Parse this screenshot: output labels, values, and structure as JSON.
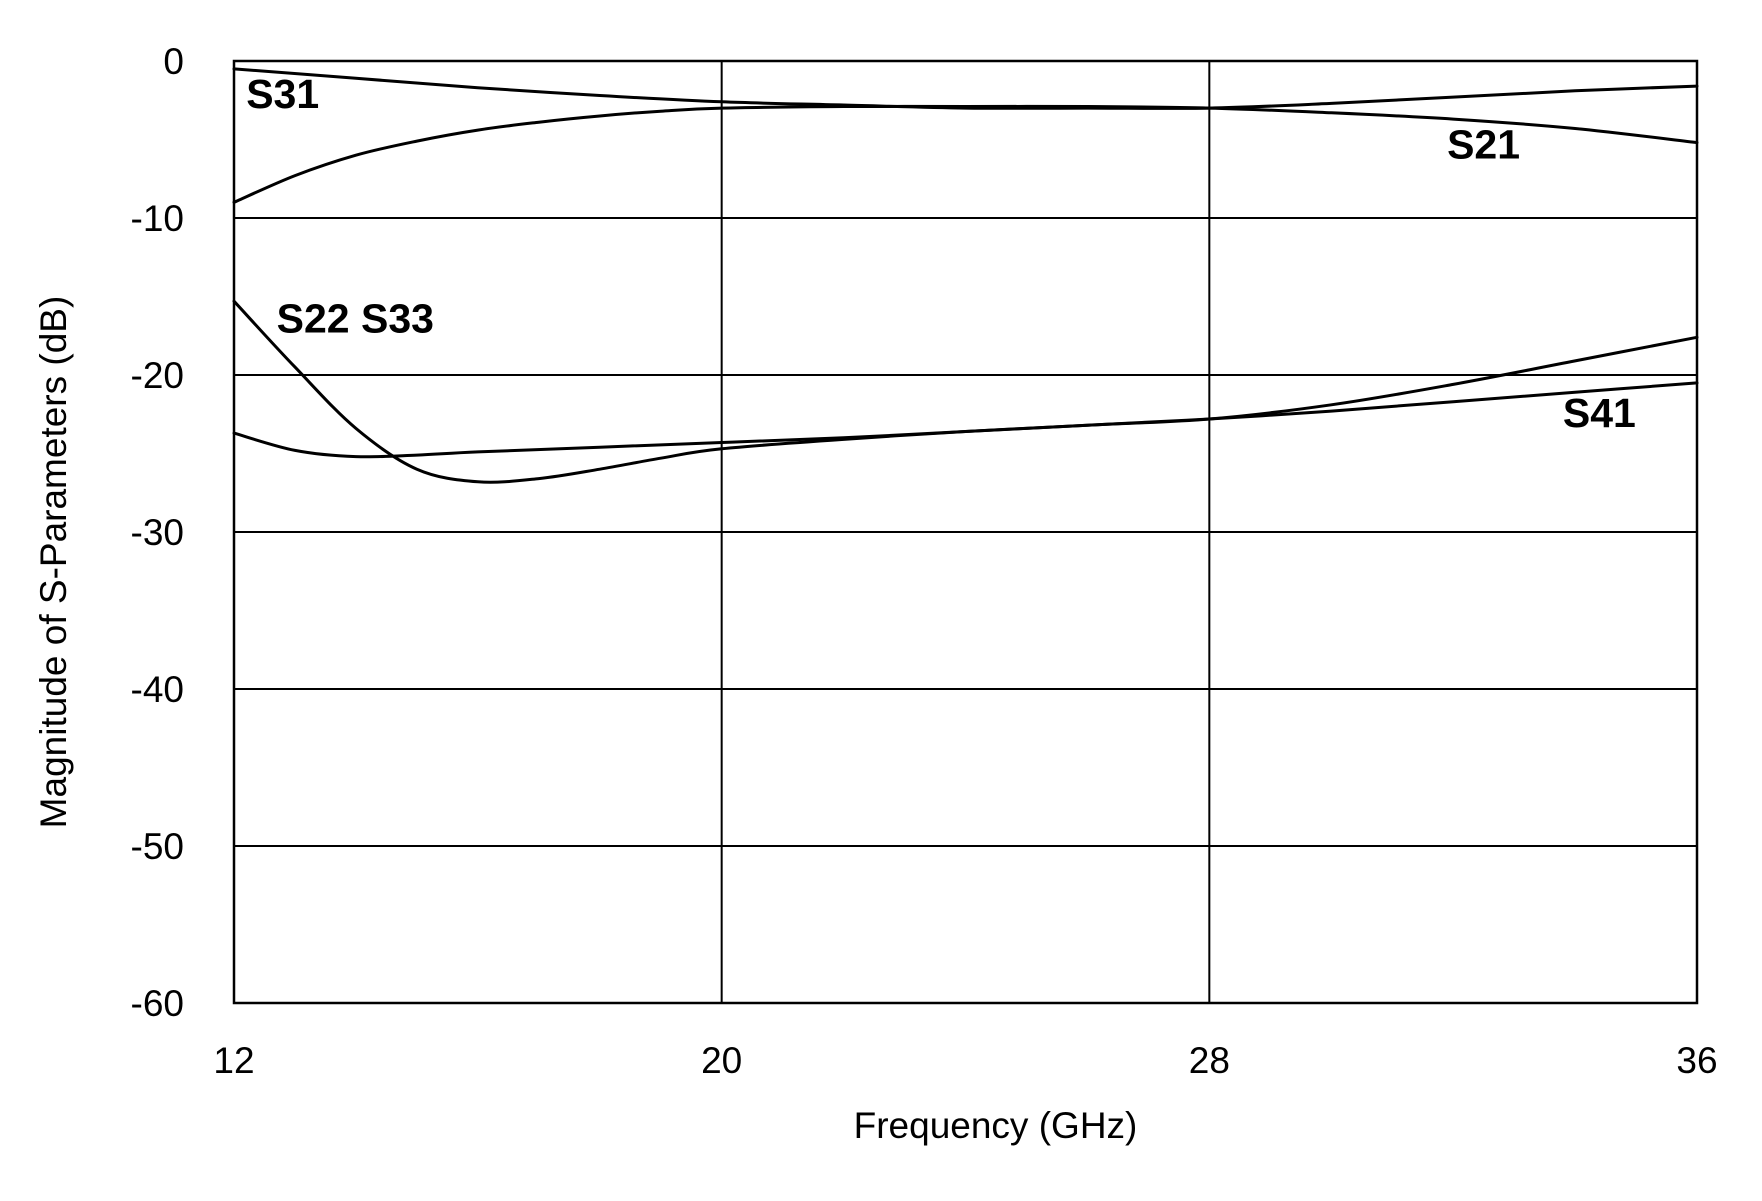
{
  "chart_data": {
    "type": "line",
    "xlabel": "Frequency (GHz)",
    "ylabel": "Magnitude of S-Parameters (dB)",
    "xlim": [
      12,
      36
    ],
    "ylim": [
      -60,
      0
    ],
    "xticks": [
      12,
      20,
      28,
      36
    ],
    "yticks": [
      0,
      -10,
      -20,
      -30,
      -40,
      -50,
      -60
    ],
    "xtick_labels": [
      "12",
      "20",
      "28",
      "36"
    ],
    "ytick_labels": [
      "0",
      "-10",
      "-20",
      "-30",
      "-40",
      "-50",
      "-60"
    ],
    "grid": true,
    "legend": "none (series labelled directly on the plot)",
    "line_color": "#000000",
    "series": [
      {
        "name": "S31",
        "x": [
          12,
          14,
          16,
          18,
          20,
          22,
          24,
          26,
          28,
          30,
          32,
          34,
          36
        ],
        "values": [
          -0.5,
          -1.1,
          -1.7,
          -2.2,
          -2.6,
          -2.8,
          -3.0,
          -3.0,
          -3.0,
          -2.7,
          -2.3,
          -1.9,
          -1.6
        ]
      },
      {
        "name": "S21",
        "x": [
          12,
          13,
          14,
          15,
          16,
          17,
          18,
          19,
          20,
          22,
          24,
          26,
          28,
          30,
          32,
          34,
          36
        ],
        "values": [
          -9.0,
          -7.3,
          -6.0,
          -5.1,
          -4.4,
          -3.9,
          -3.5,
          -3.2,
          -3.0,
          -2.9,
          -2.9,
          -2.9,
          -3.0,
          -3.3,
          -3.7,
          -4.3,
          -5.2
        ]
      },
      {
        "name": "S22",
        "x": [
          12,
          13,
          14,
          15,
          16,
          17,
          18,
          19,
          20,
          22,
          24,
          26,
          28,
          30,
          32,
          34,
          36
        ],
        "values": [
          -15.3,
          -19.5,
          -23.4,
          -26.0,
          -26.8,
          -26.6,
          -26.0,
          -25.3,
          -24.7,
          -24.1,
          -23.6,
          -23.2,
          -22.8,
          -21.9,
          -20.6,
          -19.1,
          -17.6
        ]
      },
      {
        "name": "S33",
        "x": [
          12,
          13,
          14,
          15,
          16,
          18,
          20,
          22,
          24,
          26,
          28,
          30,
          32,
          34,
          36
        ],
        "values": [
          -23.7,
          -24.8,
          -25.2,
          -25.1,
          -24.9,
          -24.6,
          -24.3,
          -24.0,
          -23.6,
          -23.2,
          -22.8,
          -22.3,
          -21.7,
          -21.1,
          -20.5
        ]
      },
      {
        "name": "S41",
        "x": [],
        "values": []
      }
    ],
    "annotations": [
      {
        "text": "S31",
        "x": 12.2,
        "y": -3.0
      },
      {
        "text": "S21",
        "x": 31.9,
        "y": -6.2
      },
      {
        "text": "S22 S33",
        "x": 12.7,
        "y": -17.3
      },
      {
        "text": "S41",
        "x": 33.8,
        "y": -23.3
      }
    ]
  }
}
